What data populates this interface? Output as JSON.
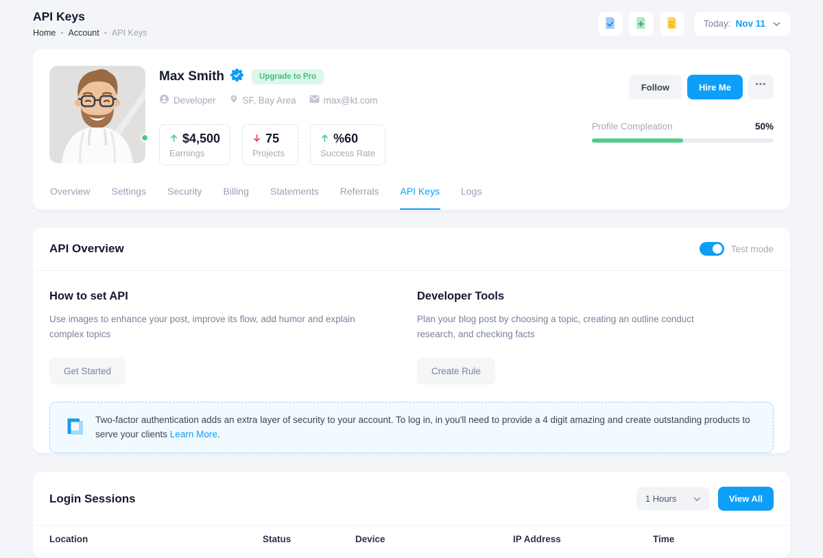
{
  "colors": {
    "primary": "#0d9ef7",
    "success": "#50cd89",
    "danger": "#f1416c",
    "badge_green_bg": "#ddf7e9",
    "alert_bg": "#f1faff"
  },
  "header": {
    "title": "API Keys",
    "separator": "•",
    "breadcrumb": [
      "Home",
      "Account",
      "API Keys"
    ]
  },
  "topbar": {
    "icons": [
      {
        "name": "file-check-icon"
      },
      {
        "name": "file-plus-icon"
      },
      {
        "name": "file-lines-icon"
      }
    ],
    "date_label": "Today:",
    "date_value": "Nov 11"
  },
  "profile": {
    "name": "Max Smith",
    "verified": true,
    "badge": "Upgrade to Pro",
    "meta": [
      {
        "icon": "user-icon",
        "label": "Developer"
      },
      {
        "icon": "location-pin-icon",
        "label": "SF, Bay Area"
      },
      {
        "icon": "mail-icon",
        "label": "max@kt.com"
      }
    ],
    "stats": [
      {
        "trend": "up",
        "value": "$4,500",
        "label": "Earnings"
      },
      {
        "trend": "down",
        "value": "75",
        "label": "Projects"
      },
      {
        "trend": "up",
        "value": "%60",
        "label": "Success Rate"
      }
    ],
    "actions": {
      "follow": "Follow",
      "hire": "Hire Me",
      "more": "⋯"
    },
    "progress": {
      "label": "Profile Compleation",
      "value": "50%",
      "percent": 50
    }
  },
  "tabs": {
    "items": [
      "Overview",
      "Settings",
      "Security",
      "Billing",
      "Statements",
      "Referrals",
      "API Keys",
      "Logs"
    ],
    "active": "API Keys"
  },
  "api_overview": {
    "title": "API Overview",
    "toggle_label": "Test mode",
    "toggle_on": true,
    "sections": [
      {
        "title": "How to set API",
        "body": "Use images to enhance your post, improve its flow, add humor and explain complex topics",
        "button": "Get Started"
      },
      {
        "title": "Developer Tools",
        "body": "Plan your blog post by choosing a topic, creating an outline conduct research, and checking facts",
        "button": "Create Rule"
      }
    ],
    "alert": {
      "text_before": "Two-factor authentication adds an extra layer of security to your account. To log in, in you'll need to provide a 4 digit amazing and create outstanding products to serve your clients ",
      "link": "Learn More",
      "text_after": "."
    }
  },
  "login_sessions": {
    "title": "Login Sessions",
    "filter_value": "1 Hours",
    "view_all": "View All",
    "columns": [
      "Location",
      "Status",
      "Device",
      "IP Address",
      "Time"
    ]
  }
}
